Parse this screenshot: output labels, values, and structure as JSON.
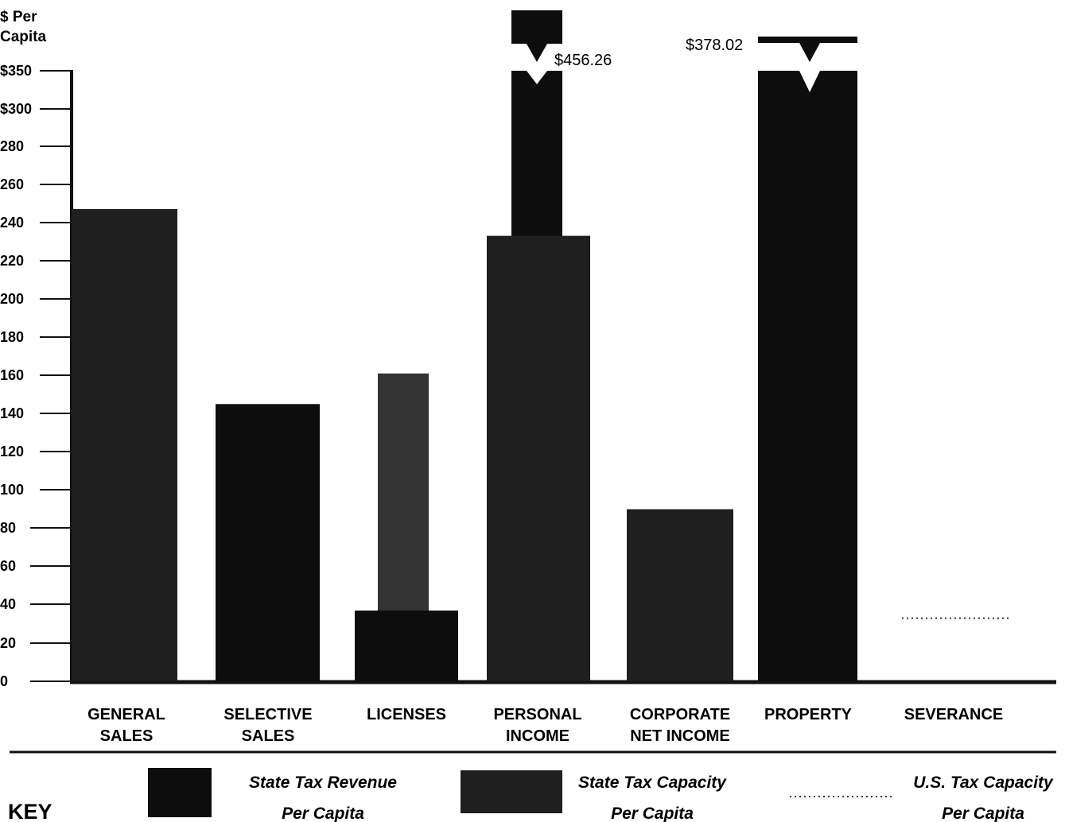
{
  "chart_data": {
    "type": "bar",
    "ylabel": "$ Per Capita",
    "y_axis_break": true,
    "y_ticks": [
      "$350",
      "$300",
      "280",
      "260",
      "240",
      "220",
      "200",
      "180",
      "160",
      "140",
      "120",
      "100",
      "80",
      "60",
      "40",
      "20",
      "0"
    ],
    "categories": [
      "GENERAL SALES",
      "SELECTIVE SALES",
      "LICENSES",
      "PERSONAL INCOME",
      "CORPORATE NET INCOME",
      "PROPERTY",
      "SEVERANCE"
    ],
    "series": [
      {
        "name": "State Tax Revenue Per Capita",
        "values": [
          247,
          145,
          37,
          456.26,
          0,
          378.02,
          0
        ]
      },
      {
        "name": "State Tax Capacity Per Capita",
        "values": [
          247,
          145,
          37,
          233,
          90,
          378.02,
          0
        ]
      },
      {
        "name": "U.S. Tax Capacity Per Capita",
        "values": [
          null,
          null,
          161,
          null,
          null,
          null,
          33
        ]
      }
    ],
    "annotations": [
      {
        "category": "PERSONAL INCOME",
        "label": "$456.26"
      },
      {
        "category": "PROPERTY",
        "label": "$378.02"
      }
    ],
    "key": {
      "title": "KEY",
      "items": [
        {
          "line1": "State Tax Revenue",
          "line2": "Per Capita"
        },
        {
          "line1": "State Tax Capacity",
          "line2": "Per Capita"
        },
        {
          "line1": "U.S. Tax Capacity",
          "line2": "Per Capita"
        }
      ]
    },
    "colors": {
      "revenue": "#0d0d0d",
      "capacity": "#1f1f1f",
      "us_capacity": "#333333"
    }
  }
}
